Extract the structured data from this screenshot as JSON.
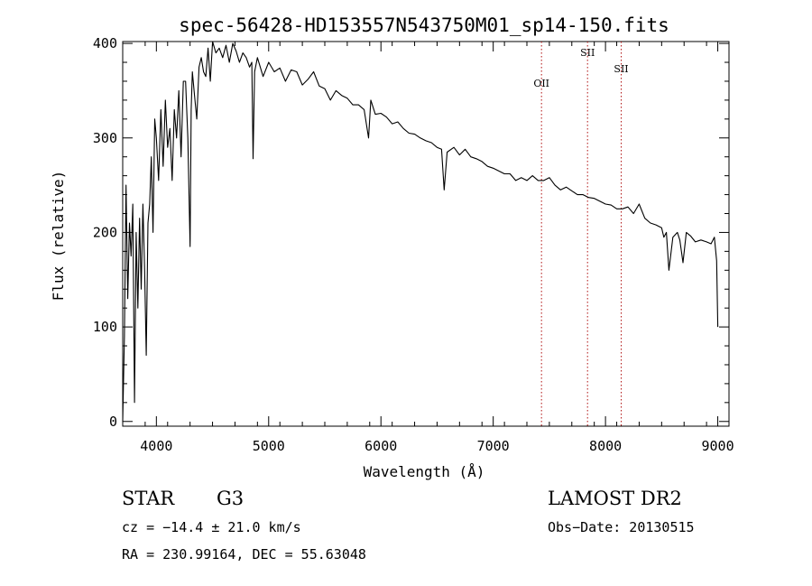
{
  "chart_data": {
    "type": "line",
    "title": "spec-56428-HD153557N543750M01_sp14-150.fits",
    "xlabel": "Wavelength (Å)",
    "ylabel": "Flux (relative)",
    "xlim": [
      3700,
      9100
    ],
    "ylim": [
      -5,
      402
    ],
    "xticks": [
      4000,
      5000,
      6000,
      7000,
      8000,
      9000
    ],
    "yticks": [
      0,
      100,
      200,
      300,
      400
    ],
    "xtick_labels": [
      "4000",
      "5000",
      "6000",
      "7000",
      "8000",
      "9000"
    ],
    "ytick_labels": [
      "0",
      "100",
      "200",
      "300",
      "400"
    ],
    "grid": false,
    "series": [
      {
        "name": "flux",
        "x": [
          3700,
          3715,
          3730,
          3745,
          3760,
          3775,
          3790,
          3805,
          3820,
          3835,
          3850,
          3865,
          3880,
          3895,
          3910,
          3925,
          3940,
          3955,
          3970,
          3985,
          4000,
          4020,
          4040,
          4060,
          4080,
          4100,
          4120,
          4140,
          4160,
          4180,
          4200,
          4220,
          4240,
          4260,
          4280,
          4300,
          4310,
          4320,
          4340,
          4360,
          4380,
          4400,
          4420,
          4440,
          4460,
          4480,
          4500,
          4530,
          4560,
          4590,
          4620,
          4650,
          4680,
          4710,
          4740,
          4770,
          4800,
          4830,
          4850,
          4861,
          4875,
          4900,
          4950,
          5000,
          5050,
          5100,
          5150,
          5200,
          5250,
          5300,
          5350,
          5400,
          5450,
          5500,
          5550,
          5600,
          5650,
          5700,
          5750,
          5800,
          5850,
          5890,
          5910,
          5950,
          6000,
          6050,
          6100,
          6150,
          6200,
          6250,
          6300,
          6350,
          6400,
          6450,
          6500,
          6540,
          6563,
          6590,
          6650,
          6700,
          6750,
          6800,
          6850,
          6900,
          6950,
          7000,
          7050,
          7100,
          7150,
          7200,
          7250,
          7300,
          7350,
          7400,
          7450,
          7500,
          7550,
          7600,
          7650,
          7700,
          7750,
          7800,
          7850,
          7900,
          7950,
          8000,
          8050,
          8100,
          8150,
          8200,
          8250,
          8300,
          8350,
          8400,
          8450,
          8500,
          8520,
          8542,
          8565,
          8600,
          8640,
          8662,
          8690,
          8720,
          8760,
          8800,
          8850,
          8900,
          8940,
          8970,
          8990,
          9000
        ],
        "y": [
          0,
          90,
          250,
          130,
          210,
          175,
          230,
          20,
          200,
          120,
          215,
          140,
          230,
          160,
          70,
          210,
          230,
          280,
          200,
          320,
          300,
          255,
          330,
          270,
          340,
          290,
          310,
          255,
          330,
          300,
          350,
          280,
          360,
          360,
          300,
          185,
          330,
          370,
          345,
          320,
          375,
          385,
          370,
          365,
          395,
          360,
          402,
          390,
          395,
          385,
          398,
          380,
          400,
          392,
          380,
          390,
          385,
          375,
          380,
          278,
          370,
          385,
          365,
          380,
          370,
          374,
          360,
          372,
          370,
          356,
          362,
          370,
          355,
          352,
          340,
          350,
          345,
          342,
          335,
          335,
          330,
          300,
          340,
          325,
          326,
          322,
          315,
          317,
          310,
          305,
          304,
          300,
          297,
          295,
          290,
          288,
          245,
          285,
          290,
          282,
          288,
          280,
          278,
          275,
          270,
          268,
          265,
          262,
          262,
          255,
          258,
          255,
          260,
          255,
          255,
          258,
          250,
          245,
          248,
          244,
          240,
          240,
          237,
          236,
          233,
          230,
          229,
          225,
          225,
          227,
          220,
          230,
          215,
          210,
          208,
          205,
          195,
          200,
          160,
          195,
          200,
          192,
          168,
          200,
          196,
          190,
          192,
          190,
          188,
          195,
          170,
          100
        ]
      }
    ],
    "lines": [
      {
        "label": "OII",
        "x": 7430
      },
      {
        "label": "SII",
        "x": 7840
      },
      {
        "label": "SII",
        "x": 8140
      }
    ]
  },
  "info": {
    "object_class": "STAR",
    "subclass": "G3",
    "survey": "LAMOST DR2",
    "cz": "cz = −14.4 ± 21.0 km/s",
    "obs_date": "Obs−Date: 20130515",
    "coords": "RA = 230.99164, DEC =  55.63048"
  }
}
